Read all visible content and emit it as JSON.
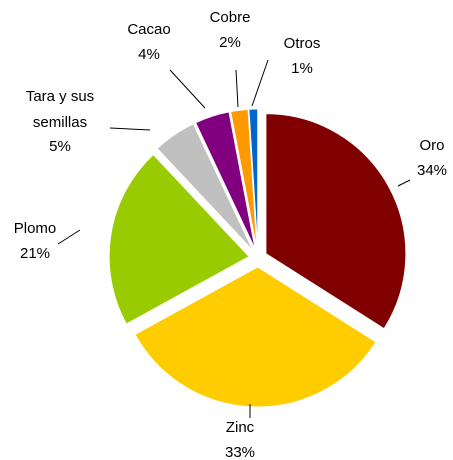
{
  "chart_data": {
    "type": "pie",
    "categories": [
      "Oro",
      "Zinc",
      "Plomo",
      "Tara y sus semillas",
      "Cacao",
      "Cobre",
      "Otros"
    ],
    "values": [
      34,
      33,
      21,
      5,
      4,
      2,
      1
    ],
    "value_labels": [
      "34%",
      "33%",
      "21%",
      "5%",
      "4%",
      "2%",
      "1%"
    ],
    "colors": [
      "#800000",
      "#ffcc00",
      "#99cc00",
      "#c0c0c0",
      "#800080",
      "#ff9900",
      "#0066cc"
    ]
  }
}
